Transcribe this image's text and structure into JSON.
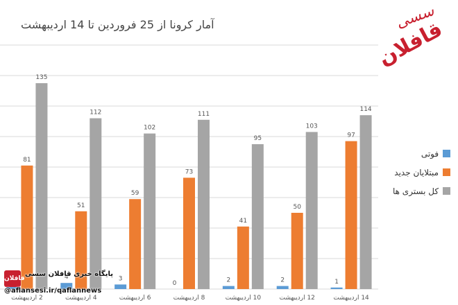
{
  "colors": {
    "deaths": "#5b9bd5",
    "new_cases": "#ed7d31",
    "hospitalized": "#a5a5a5"
  },
  "logo": {
    "main_text": "قافلان",
    "sub_text": "سسی"
  },
  "watermark": {
    "line1": "پایگاه خبری قافلان سسی",
    "line2": "@aflansesi.ir/qaflannews",
    "badge": "قافلان"
  },
  "chart_data": {
    "type": "bar",
    "title": "آمار کرونا از 25 فروردین تا 14 اردیبهشت",
    "categories": [
      "2 اردیبهشت",
      "4 اردیبهشت",
      "6 اردیبهشت",
      "8 اردیبهشت",
      "10 اردیبهشت",
      "12 اردیبهشت",
      "14 اردیبهشت"
    ],
    "series": [
      {
        "name": "فوتی",
        "values": [
          4,
          4,
          3,
          0,
          2,
          2,
          1
        ]
      },
      {
        "name": "مبتلایان جدید",
        "values": [
          81,
          51,
          59,
          73,
          41,
          50,
          97
        ]
      },
      {
        "name": "کل بستری ها",
        "values": [
          135,
          112,
          102,
          111,
          95,
          103,
          114
        ]
      }
    ],
    "ylim": [
      0,
      160
    ],
    "grid": true,
    "legend_position": "right"
  }
}
